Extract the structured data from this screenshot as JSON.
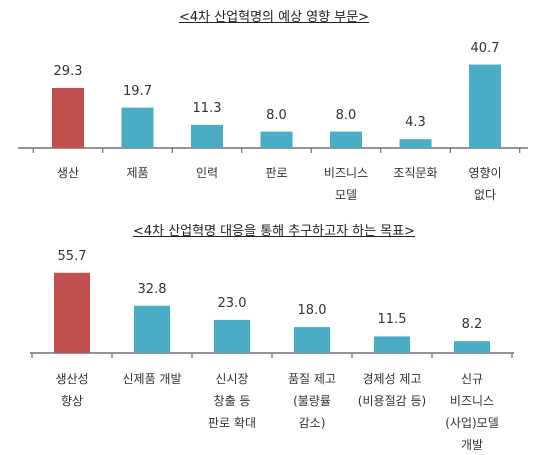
{
  "chart_data": [
    {
      "type": "bar",
      "title": "<4차 산업혁명의 예상 영향 부문>",
      "categories": [
        "생산",
        "제품",
        "인력",
        "판로",
        "비즈니스\n모델",
        "조직문화",
        "영향이\n없다"
      ],
      "values": [
        29.3,
        19.7,
        11.3,
        8.0,
        8.0,
        4.3,
        40.7
      ],
      "value_labels": [
        "29.3",
        "19.7",
        "11.3",
        "8.0",
        "8.0",
        "4.3",
        "40.7"
      ],
      "colors": [
        "#c0504d",
        "#4bacc6",
        "#4bacc6",
        "#4bacc6",
        "#4bacc6",
        "#4bacc6",
        "#4bacc6"
      ]
    },
    {
      "type": "bar",
      "title": "<4차 산업혁명 대응을 통해 추구하고자 하는 목표>",
      "categories": [
        "생산성\n향상",
        "신제품 개발",
        "신시장\n창출 등\n판로 확대",
        "품질 제고\n(불량률\n감소)",
        "경제성 제고\n(비용절감 등)",
        "신규\n비즈니스\n(사업)모델\n개발"
      ],
      "values": [
        55.7,
        32.8,
        23.0,
        18.0,
        11.5,
        8.2
      ],
      "value_labels": [
        "55.7",
        "32.8",
        "23.0",
        "18.0",
        "11.5",
        "8.2"
      ],
      "colors": [
        "#c0504d",
        "#4bacc6",
        "#4bacc6",
        "#4bacc6",
        "#4bacc6",
        "#4bacc6"
      ]
    }
  ]
}
